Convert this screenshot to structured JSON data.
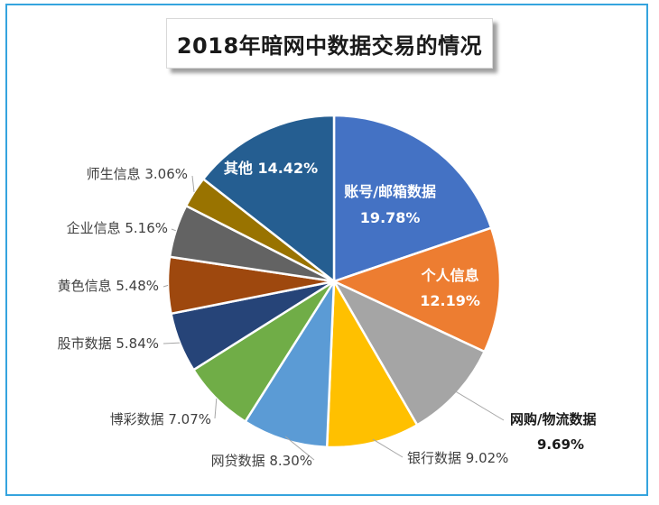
{
  "chart_data": {
    "type": "pie",
    "title": "2018年暗网中数据交易的情况",
    "start": "12 o'clock",
    "direction": "clockwise",
    "slices": [
      {
        "name": "账号/邮箱数据",
        "pct_label": "19.78%",
        "value": 19.78,
        "color": "#4472c4",
        "label_color": "#ffffff",
        "label_placement": "inside"
      },
      {
        "name": "个人信息",
        "pct_label": "12.19%",
        "value": 12.19,
        "color": "#ed7d31",
        "label_color": "#ffffff",
        "label_placement": "inside"
      },
      {
        "name": "网购/物流数据",
        "pct_label": "9.69%",
        "value": 9.69,
        "color": "#a5a5a5",
        "label_color": "#1a1a1a",
        "label_placement": "outside"
      },
      {
        "name": "银行数据",
        "pct_label": "9.02%",
        "value": 9.02,
        "color": "#ffc000",
        "label_color": "#404040",
        "label_placement": "outside"
      },
      {
        "name": "网贷数据",
        "pct_label": "8.30%",
        "value": 8.3,
        "color": "#5b9bd5",
        "label_color": "#404040",
        "label_placement": "outside"
      },
      {
        "name": "博彩数据",
        "pct_label": "7.07%",
        "value": 7.07,
        "color": "#70ad47",
        "label_color": "#404040",
        "label_placement": "outside"
      },
      {
        "name": "股市数据",
        "pct_label": "5.84%",
        "value": 5.84,
        "color": "#264478",
        "label_color": "#404040",
        "label_placement": "outside"
      },
      {
        "name": "黄色信息",
        "pct_label": "5.48%",
        "value": 5.48,
        "color": "#9e480e",
        "label_color": "#404040",
        "label_placement": "outside"
      },
      {
        "name": "企业信息",
        "pct_label": "5.16%",
        "value": 5.16,
        "color": "#636363",
        "label_color": "#404040",
        "label_placement": "outside"
      },
      {
        "name": "师生信息",
        "pct_label": "3.06%",
        "value": 3.06,
        "color": "#997300",
        "label_color": "#404040",
        "label_placement": "outside"
      },
      {
        "name": "其他",
        "pct_label": "14.42%",
        "value": 14.42,
        "color": "#255e91",
        "label_color": "#ffffff",
        "label_placement": "inside"
      }
    ]
  }
}
